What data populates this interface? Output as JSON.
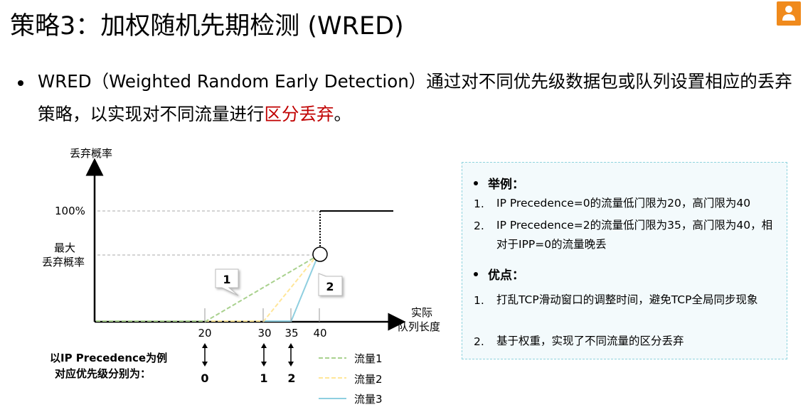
{
  "title": "策略3：加权随机先期检测 (WRED)",
  "bullet": {
    "text_before": "WRED（Weighted Random Early Detection）通过对不同优先级数据包或队列设置相应的丢弃策略，以实现对不同流量进行",
    "text_highlight": "区分丢弃",
    "text_after": "。"
  },
  "diagram": {
    "y_axis_label": "丢弃概率",
    "x_axis_label_line1": "实际",
    "x_axis_label_line2": "队列长度",
    "label_100": "100%",
    "label_max_line1": "最大",
    "label_max_line2": "丢弃概率",
    "ticks": [
      "20",
      "30",
      "35",
      "40"
    ],
    "callout_1": "1",
    "callout_2": "2",
    "ipp_caption_line1": "以IP Precedence为例",
    "ipp_caption_line2": "对应优先级分别为：",
    "ipp_values": [
      "0",
      "1",
      "2"
    ],
    "legend": [
      {
        "label": "流量1",
        "color": "#a9d18e"
      },
      {
        "label": "流量2",
        "color": "#ffe699"
      },
      {
        "label": "流量3",
        "color": "#8fcfe0"
      }
    ]
  },
  "info": {
    "example_header": "举例：",
    "examples": [
      {
        "num": "1.",
        "text": "IP Precedence=0的流量低门限为20，高门限为40"
      },
      {
        "num": "2.",
        "text": "IP Precedence=2的流量低门限为35，高门限为40，相对于IPP=0的流量晚丢"
      }
    ],
    "advantage_header": "优点：",
    "advantages": [
      {
        "num": "1.",
        "text": "打乱TCP滑动窗口的调整时间，避免TCP全局同步现象"
      },
      {
        "num": "2.",
        "text": "基于权重，实现了不同流量的区分丢弃"
      }
    ]
  }
}
